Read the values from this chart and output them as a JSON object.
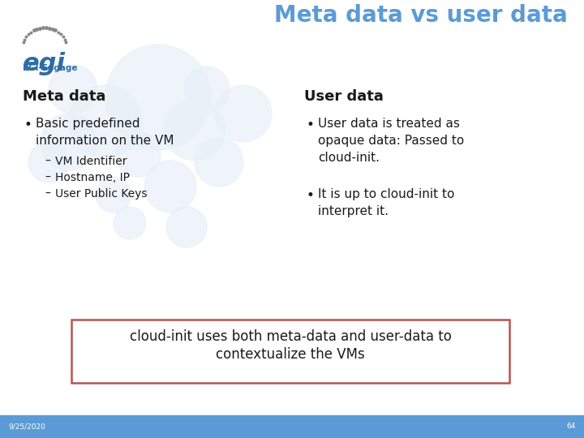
{
  "title": "Meta data vs user data",
  "title_color": "#5b9bd5",
  "bg_color": "#ffffff",
  "footer_color": "#5b9bd5",
  "footer_text_date": "9/25/2020",
  "footer_text_num": "64",
  "left_heading": "Meta data",
  "right_heading": "User data",
  "left_bullet1": "Basic predefined\ninformation on the VM",
  "left_subbullets": [
    "VM Identifier",
    "Hostname, IP",
    "User Public Keys"
  ],
  "right_bullet1": "User data is treated as\nopaque data: Passed to\ncloud-init.",
  "right_bullet2": "It is up to cloud-init to\ninterpret it.",
  "box_text1": "cloud-init uses both meta-data and user-data to",
  "box_text2": "contextualize the VMs",
  "box_border_color": "#b85450",
  "heading_color": "#1a1a1a",
  "text_color": "#1a1a1a",
  "circle_color": "#e8f0f8",
  "circles": [
    [
      195,
      420,
      65
    ],
    [
      130,
      390,
      45
    ],
    [
      240,
      380,
      38
    ],
    [
      85,
      365,
      35
    ],
    [
      170,
      350,
      28
    ],
    [
      60,
      340,
      25
    ],
    [
      210,
      310,
      32
    ],
    [
      140,
      300,
      22
    ],
    [
      90,
      430,
      30
    ],
    [
      270,
      340,
      30
    ],
    [
      230,
      260,
      25
    ],
    [
      160,
      265,
      20
    ],
    [
      300,
      400,
      35
    ],
    [
      255,
      430,
      28
    ]
  ],
  "egi_color": "#2e6da4",
  "egi_engage_color": "#2e6da4"
}
